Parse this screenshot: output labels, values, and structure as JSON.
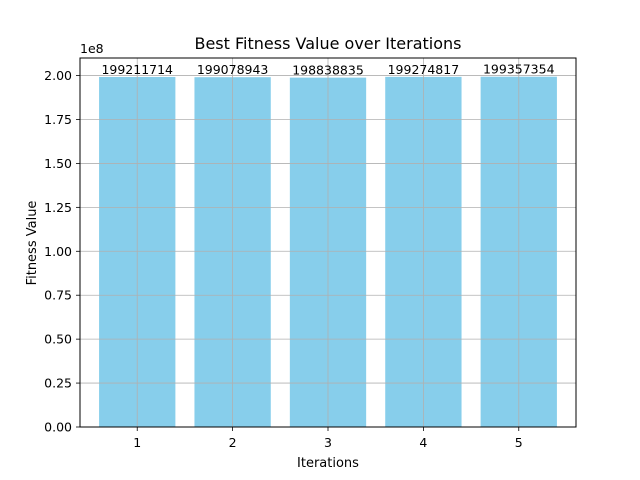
{
  "chart_data": {
    "type": "bar",
    "title": "Best Fitness Value over Iterations",
    "xlabel": "Iterations",
    "ylabel": "Fitness Value",
    "y_scale_label": "1e8",
    "categories": [
      "1",
      "2",
      "3",
      "4",
      "5"
    ],
    "values": [
      199211714,
      199078943,
      198838835,
      199274817,
      199357354
    ],
    "data_labels": [
      "199211714",
      "199078943",
      "198838835",
      "199274817",
      "199357354"
    ],
    "ylim": [
      0,
      210000000
    ],
    "yticks": [
      0,
      25000000,
      50000000,
      75000000,
      100000000,
      125000000,
      150000000,
      175000000,
      200000000
    ],
    "ytick_labels": [
      "0.00",
      "0.25",
      "0.50",
      "0.75",
      "1.00",
      "1.25",
      "1.50",
      "1.75",
      "2.00"
    ],
    "grid": true,
    "bar_color": "#87ceeb",
    "grid_color": "#b0b0b0"
  }
}
